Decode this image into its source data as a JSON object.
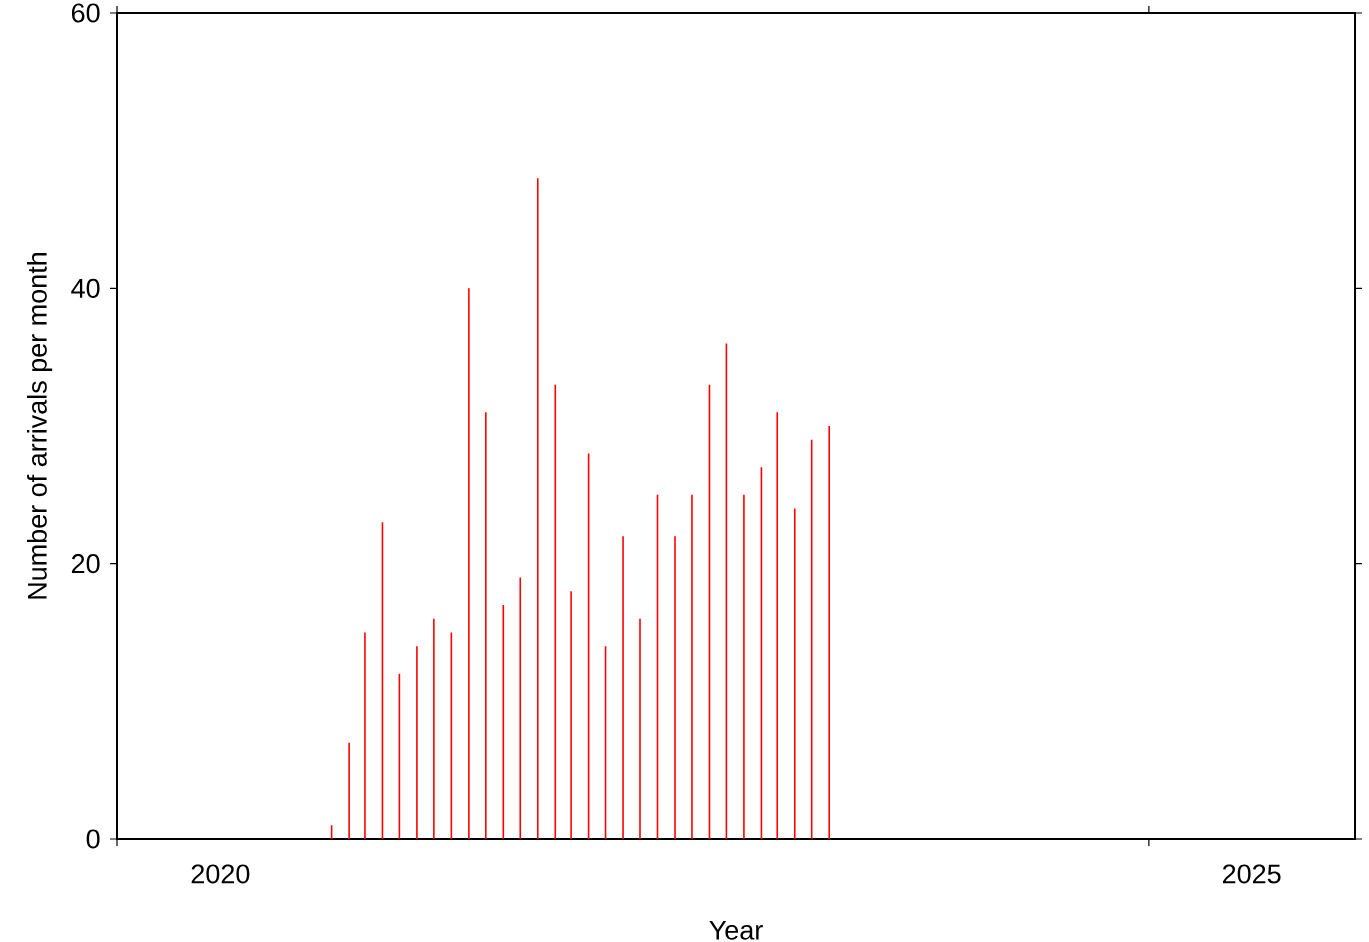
{
  "chart_data": {
    "type": "bar",
    "xlabel": "Year",
    "ylabel": "Number of arrivals per month",
    "x": [
      "2021-01-15",
      "2021-02-15",
      "2021-03-15",
      "2021-04-15",
      "2021-05-15",
      "2021-06-15",
      "2021-07-15",
      "2021-08-15",
      "2021-09-15",
      "2021-10-15",
      "2021-11-15",
      "2021-12-15",
      "2022-01-15",
      "2022-02-15",
      "2022-03-15",
      "2022-04-15",
      "2022-05-15",
      "2022-06-15",
      "2022-07-15",
      "2022-08-15",
      "2022-09-15",
      "2022-10-15",
      "2022-11-15",
      "2022-12-15",
      "2023-01-15",
      "2023-02-15",
      "2023-03-15",
      "2023-04-15",
      "2023-05-15",
      "2023-06-15"
    ],
    "values": [
      1,
      7,
      15,
      23,
      12,
      14,
      16,
      15,
      40,
      31,
      17,
      19,
      48,
      33,
      18,
      28,
      14,
      22,
      16,
      25,
      22,
      25,
      33,
      36,
      25,
      27,
      31,
      24,
      29,
      30
    ],
    "color": "#ff0000",
    "xlim": [
      "2020-01-01",
      "2026-01-01"
    ],
    "xticks": [
      {
        "value": "2020-01-01",
        "label": null
      },
      {
        "value": "2020-07-02",
        "label": "2020"
      },
      {
        "value": "2025-01-01",
        "label": null
      },
      {
        "value": "2025-07-02",
        "label": "2025"
      }
    ],
    "ylim": [
      0,
      60
    ],
    "yticks": [
      0,
      20,
      40,
      60
    ]
  }
}
